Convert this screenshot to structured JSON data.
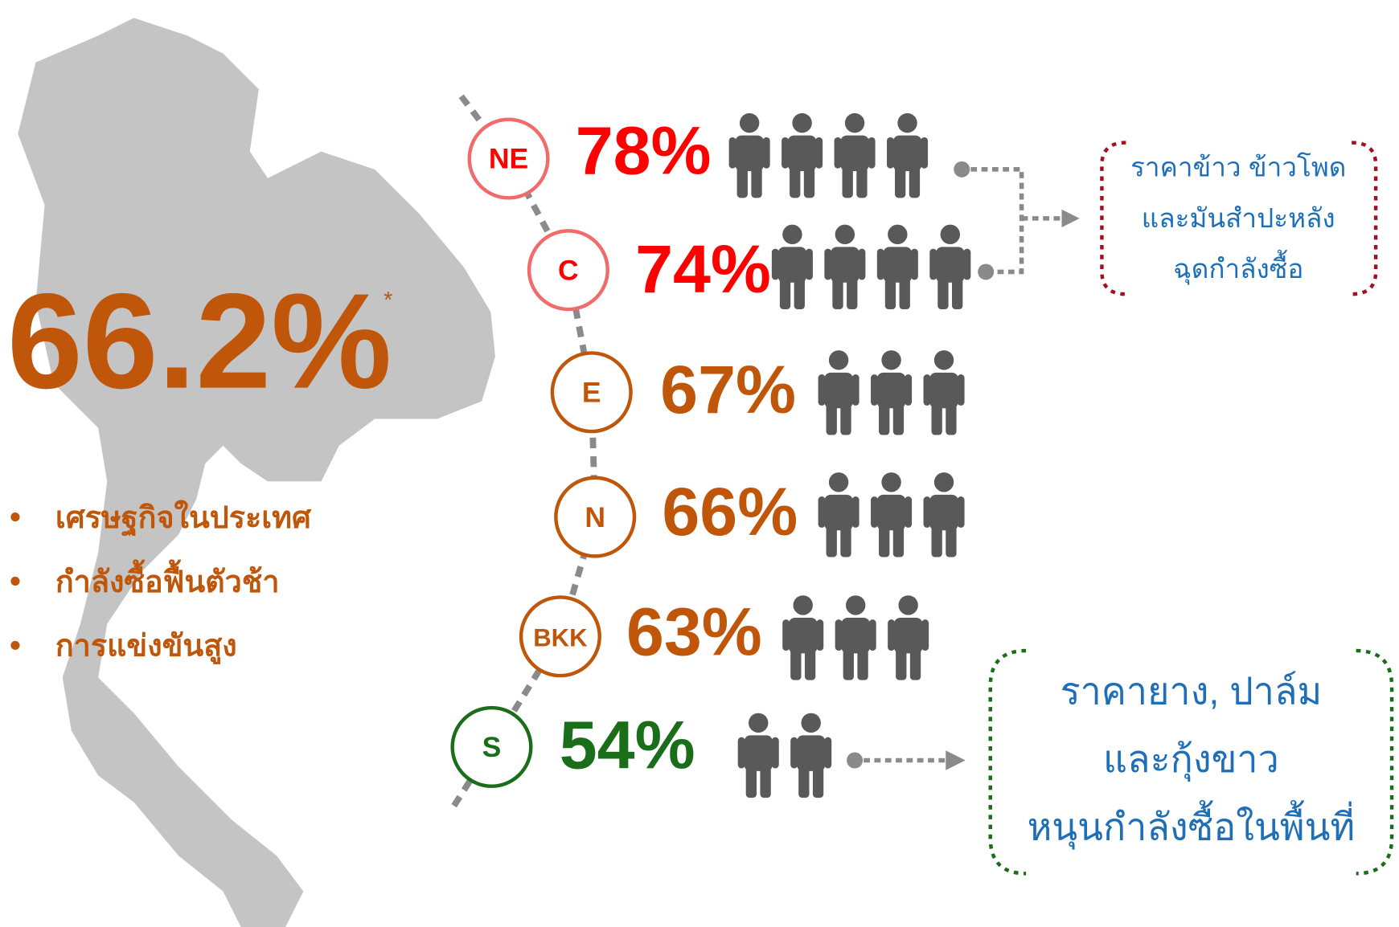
{
  "headline": {
    "value": "66.2%",
    "mark": "*"
  },
  "bullets": [
    "เศรษฐกิจในประเทศ",
    "กำลังซื้อฟื้นตัวช้า",
    "การแข่งขันสูง"
  ],
  "regions": [
    {
      "code": "NE",
      "percent": "78%",
      "people": 4,
      "color": "#ff0000"
    },
    {
      "code": "C",
      "percent": "74%",
      "people": 4,
      "color": "#ff0000"
    },
    {
      "code": "E",
      "percent": "67%",
      "people": 3,
      "color": "#c0560a"
    },
    {
      "code": "N",
      "percent": "66%",
      "people": 3,
      "color": "#c0560a"
    },
    {
      "code": "BKK",
      "percent": "63%",
      "people": 3,
      "color": "#c0560a"
    },
    {
      "code": "S",
      "percent": "54%",
      "people": 2,
      "color": "#1a6e1a"
    }
  ],
  "notes": [
    {
      "lines": [
        "ราคาข้าว ข้าวโพด",
        "และมันสำปะหลัง",
        "ฉุดกำลังซื้อ"
      ],
      "color": "#a01020"
    },
    {
      "lines": [
        "ราคายาง, ปาล์ม",
        "และกุ้งขาว",
        "หนุนกำลังซื้อในพื้นที่"
      ],
      "color": "#1a6e1a"
    }
  ]
}
